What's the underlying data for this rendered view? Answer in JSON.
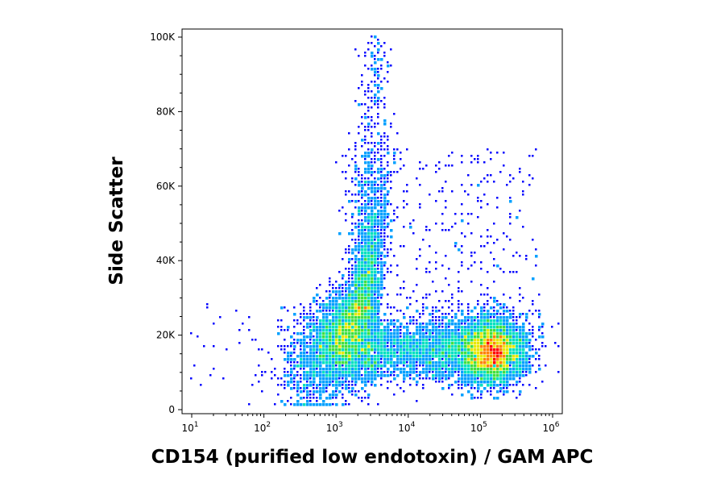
{
  "chart_data": {
    "type": "scatter",
    "subtype": "flow-cytometry density dot plot",
    "xlabel": "CD154 (purified low endotoxin) / GAM APC",
    "ylabel": "Side Scatter",
    "x_scale": "log",
    "xlim": [
      10,
      1000000
    ],
    "ylim": [
      0,
      100000
    ],
    "x_ticks": [
      {
        "value": 10,
        "base": "10",
        "exp": "1"
      },
      {
        "value": 100,
        "base": "10",
        "exp": "2"
      },
      {
        "value": 1000,
        "base": "10",
        "exp": "3"
      },
      {
        "value": 10000,
        "base": "10",
        "exp": "4"
      },
      {
        "value": 100000,
        "base": "10",
        "exp": "5"
      },
      {
        "value": 1000000,
        "base": "10",
        "exp": "6"
      }
    ],
    "y_ticks": [
      {
        "value": 0,
        "label": "0"
      },
      {
        "value": 20000,
        "label": "20K"
      },
      {
        "value": 40000,
        "label": "40K"
      },
      {
        "value": 60000,
        "label": "60K"
      },
      {
        "value": 80000,
        "label": "80K"
      },
      {
        "value": 100000,
        "label": "100K"
      }
    ],
    "populations": [
      {
        "name": "negative",
        "x_center": 1500,
        "y_center": 20000,
        "peak_density": "high"
      },
      {
        "name": "positive",
        "x_center": 150000,
        "y_center": 15000,
        "peak_density": "high"
      }
    ],
    "density_colors": [
      "#0000ff",
      "#00a0ff",
      "#00e0c0",
      "#40e040",
      "#e8e800",
      "#ff8000",
      "#ff0000"
    ],
    "grid": false,
    "legend": "none"
  }
}
